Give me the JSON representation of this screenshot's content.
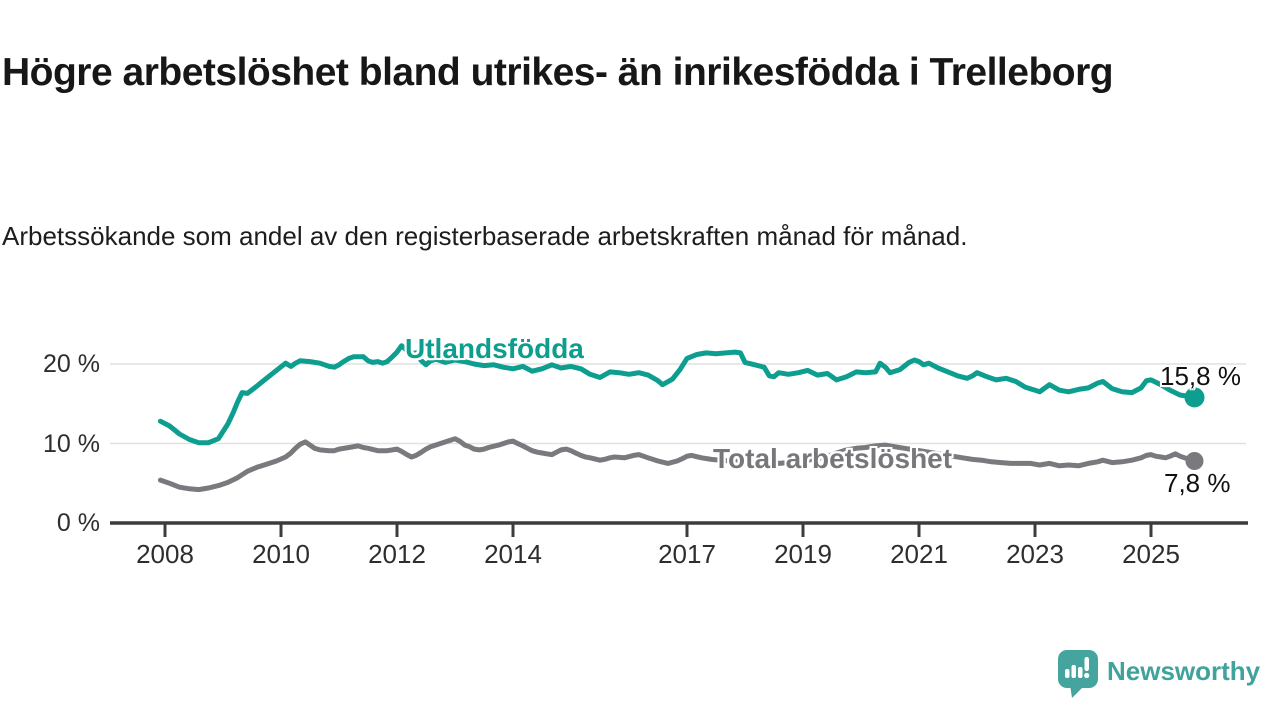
{
  "chart_data": {
    "type": "line",
    "title": "Högre arbetslöshet bland utrikes- än inrikesfödda i Trelleborg",
    "subtitle": "Arbetssökande som andel av den registerbaserade arbetskraften månad för månad.",
    "unit": "%",
    "grid": "horizontal-only",
    "legend_position": "inline-labels",
    "x_axis": {
      "min": 2007.9,
      "max": 2026.3,
      "tick_years": [
        2008,
        2010,
        2012,
        2014,
        2017,
        2019,
        2021,
        2023,
        2025
      ],
      "tick_labels": [
        "2008",
        "2010",
        "2012",
        "2014",
        "2017",
        "2019",
        "2021",
        "2023",
        "2025"
      ]
    },
    "y_axis": {
      "min": 0,
      "max": 25,
      "gridlines": [
        10,
        20
      ],
      "tick_values": [
        20,
        10,
        0
      ],
      "tick_labels": [
        "20 %",
        "10 %",
        "0 %"
      ]
    },
    "series": [
      {
        "name": "Utlandsfödda",
        "color": "#0d9e8f",
        "end_label": "15,8 %",
        "end_value": 15.8,
        "points": [
          [
            2007.92,
            12.8
          ],
          [
            2008.08,
            12.2
          ],
          [
            2008.25,
            11.2
          ],
          [
            2008.42,
            10.5
          ],
          [
            2008.58,
            10.1
          ],
          [
            2008.75,
            10.1
          ],
          [
            2008.92,
            10.6
          ],
          [
            2009.08,
            12.4
          ],
          [
            2009.17,
            13.8
          ],
          [
            2009.25,
            15.2
          ],
          [
            2009.33,
            16.4
          ],
          [
            2009.42,
            16.3
          ],
          [
            2009.58,
            17.2
          ],
          [
            2009.75,
            18.2
          ],
          [
            2009.92,
            19.2
          ],
          [
            2010.08,
            20.1
          ],
          [
            2010.17,
            19.7
          ],
          [
            2010.25,
            20.1
          ],
          [
            2010.33,
            20.4
          ],
          [
            2010.5,
            20.3
          ],
          [
            2010.67,
            20.1
          ],
          [
            2010.83,
            19.7
          ],
          [
            2010.92,
            19.6
          ],
          [
            2011.0,
            19.9
          ],
          [
            2011.08,
            20.3
          ],
          [
            2011.17,
            20.7
          ],
          [
            2011.25,
            20.9
          ],
          [
            2011.42,
            20.9
          ],
          [
            2011.5,
            20.4
          ],
          [
            2011.58,
            20.2
          ],
          [
            2011.67,
            20.3
          ],
          [
            2011.75,
            20.1
          ],
          [
            2011.83,
            20.3
          ],
          [
            2011.92,
            20.9
          ],
          [
            2012.0,
            21.5
          ],
          [
            2012.08,
            22.3
          ],
          [
            2012.17,
            21.7
          ],
          [
            2012.25,
            21.3
          ],
          [
            2012.33,
            21.4
          ],
          [
            2012.42,
            20.4
          ],
          [
            2012.5,
            19.9
          ],
          [
            2012.58,
            20.4
          ],
          [
            2012.67,
            20.6
          ],
          [
            2012.83,
            20.2
          ],
          [
            2013.0,
            20.5
          ],
          [
            2013.17,
            20.3
          ],
          [
            2013.33,
            20.0
          ],
          [
            2013.5,
            19.8
          ],
          [
            2013.67,
            19.9
          ],
          [
            2013.83,
            19.6
          ],
          [
            2014.0,
            19.4
          ],
          [
            2014.17,
            19.7
          ],
          [
            2014.33,
            19.1
          ],
          [
            2014.5,
            19.4
          ],
          [
            2014.67,
            19.9
          ],
          [
            2014.83,
            19.5
          ],
          [
            2015.0,
            19.7
          ],
          [
            2015.17,
            19.4
          ],
          [
            2015.33,
            18.7
          ],
          [
            2015.5,
            18.3
          ],
          [
            2015.67,
            19.0
          ],
          [
            2015.83,
            18.9
          ],
          [
            2016.0,
            18.7
          ],
          [
            2016.17,
            18.9
          ],
          [
            2016.33,
            18.6
          ],
          [
            2016.5,
            17.9
          ],
          [
            2016.58,
            17.4
          ],
          [
            2016.75,
            18.1
          ],
          [
            2016.88,
            19.3
          ],
          [
            2017.0,
            20.7
          ],
          [
            2017.17,
            21.2
          ],
          [
            2017.33,
            21.4
          ],
          [
            2017.5,
            21.3
          ],
          [
            2017.67,
            21.4
          ],
          [
            2017.83,
            21.5
          ],
          [
            2017.92,
            21.4
          ],
          [
            2018.0,
            20.2
          ],
          [
            2018.17,
            19.9
          ],
          [
            2018.33,
            19.6
          ],
          [
            2018.42,
            18.5
          ],
          [
            2018.5,
            18.4
          ],
          [
            2018.58,
            18.9
          ],
          [
            2018.75,
            18.7
          ],
          [
            2018.92,
            18.9
          ],
          [
            2019.08,
            19.2
          ],
          [
            2019.25,
            18.6
          ],
          [
            2019.42,
            18.8
          ],
          [
            2019.58,
            18.0
          ],
          [
            2019.75,
            18.4
          ],
          [
            2019.92,
            19.0
          ],
          [
            2020.08,
            18.9
          ],
          [
            2020.25,
            19.0
          ],
          [
            2020.33,
            20.1
          ],
          [
            2020.42,
            19.6
          ],
          [
            2020.5,
            18.9
          ],
          [
            2020.67,
            19.3
          ],
          [
            2020.83,
            20.2
          ],
          [
            2020.92,
            20.5
          ],
          [
            2021.0,
            20.3
          ],
          [
            2021.08,
            19.9
          ],
          [
            2021.17,
            20.1
          ],
          [
            2021.33,
            19.5
          ],
          [
            2021.5,
            19.0
          ],
          [
            2021.67,
            18.5
          ],
          [
            2021.83,
            18.2
          ],
          [
            2021.92,
            18.5
          ],
          [
            2022.0,
            18.9
          ],
          [
            2022.17,
            18.4
          ],
          [
            2022.33,
            18.0
          ],
          [
            2022.5,
            18.2
          ],
          [
            2022.67,
            17.8
          ],
          [
            2022.83,
            17.1
          ],
          [
            2023.0,
            16.7
          ],
          [
            2023.08,
            16.5
          ],
          [
            2023.25,
            17.4
          ],
          [
            2023.42,
            16.7
          ],
          [
            2023.58,
            16.5
          ],
          [
            2023.75,
            16.8
          ],
          [
            2023.92,
            17.0
          ],
          [
            2024.08,
            17.6
          ],
          [
            2024.17,
            17.8
          ],
          [
            2024.33,
            16.9
          ],
          [
            2024.5,
            16.5
          ],
          [
            2024.67,
            16.4
          ],
          [
            2024.83,
            17.0
          ],
          [
            2024.92,
            17.9
          ],
          [
            2025.0,
            18.0
          ],
          [
            2025.17,
            17.4
          ],
          [
            2025.33,
            16.7
          ],
          [
            2025.5,
            16.1
          ],
          [
            2025.67,
            15.9
          ],
          [
            2025.75,
            15.8
          ]
        ]
      },
      {
        "name": "Total arbetslöshet",
        "color": "#7a797d",
        "end_label": "7,8 %",
        "end_value": 7.8,
        "points": [
          [
            2007.92,
            5.4
          ],
          [
            2008.08,
            5.0
          ],
          [
            2008.25,
            4.5
          ],
          [
            2008.42,
            4.3
          ],
          [
            2008.58,
            4.2
          ],
          [
            2008.75,
            4.4
          ],
          [
            2008.92,
            4.7
          ],
          [
            2009.08,
            5.1
          ],
          [
            2009.25,
            5.7
          ],
          [
            2009.42,
            6.5
          ],
          [
            2009.58,
            7.0
          ],
          [
            2009.75,
            7.4
          ],
          [
            2009.92,
            7.8
          ],
          [
            2010.08,
            8.3
          ],
          [
            2010.17,
            8.8
          ],
          [
            2010.25,
            9.4
          ],
          [
            2010.33,
            9.9
          ],
          [
            2010.42,
            10.2
          ],
          [
            2010.5,
            9.8
          ],
          [
            2010.58,
            9.4
          ],
          [
            2010.67,
            9.2
          ],
          [
            2010.83,
            9.1
          ],
          [
            2010.92,
            9.1
          ],
          [
            2011.0,
            9.3
          ],
          [
            2011.17,
            9.5
          ],
          [
            2011.33,
            9.7
          ],
          [
            2011.42,
            9.5
          ],
          [
            2011.5,
            9.4
          ],
          [
            2011.67,
            9.1
          ],
          [
            2011.83,
            9.1
          ],
          [
            2011.92,
            9.2
          ],
          [
            2012.0,
            9.3
          ],
          [
            2012.08,
            9.0
          ],
          [
            2012.17,
            8.6
          ],
          [
            2012.25,
            8.3
          ],
          [
            2012.33,
            8.5
          ],
          [
            2012.42,
            8.9
          ],
          [
            2012.5,
            9.3
          ],
          [
            2012.58,
            9.6
          ],
          [
            2012.75,
            10.0
          ],
          [
            2012.92,
            10.4
          ],
          [
            2013.0,
            10.6
          ],
          [
            2013.08,
            10.3
          ],
          [
            2013.17,
            9.8
          ],
          [
            2013.25,
            9.6
          ],
          [
            2013.33,
            9.3
          ],
          [
            2013.42,
            9.2
          ],
          [
            2013.5,
            9.3
          ],
          [
            2013.58,
            9.5
          ],
          [
            2013.75,
            9.8
          ],
          [
            2013.92,
            10.2
          ],
          [
            2014.0,
            10.3
          ],
          [
            2014.08,
            10.0
          ],
          [
            2014.17,
            9.7
          ],
          [
            2014.25,
            9.4
          ],
          [
            2014.33,
            9.1
          ],
          [
            2014.42,
            8.9
          ],
          [
            2014.5,
            8.8
          ],
          [
            2014.58,
            8.7
          ],
          [
            2014.67,
            8.6
          ],
          [
            2014.75,
            8.9
          ],
          [
            2014.83,
            9.2
          ],
          [
            2014.92,
            9.3
          ],
          [
            2015.0,
            9.1
          ],
          [
            2015.08,
            8.8
          ],
          [
            2015.17,
            8.5
          ],
          [
            2015.25,
            8.3
          ],
          [
            2015.33,
            8.2
          ],
          [
            2015.5,
            7.9
          ],
          [
            2015.58,
            8.0
          ],
          [
            2015.67,
            8.2
          ],
          [
            2015.75,
            8.3
          ],
          [
            2015.92,
            8.2
          ],
          [
            2016.08,
            8.5
          ],
          [
            2016.17,
            8.6
          ],
          [
            2016.25,
            8.4
          ],
          [
            2016.33,
            8.2
          ],
          [
            2016.5,
            7.8
          ],
          [
            2016.67,
            7.5
          ],
          [
            2016.83,
            7.8
          ],
          [
            2016.92,
            8.1
          ],
          [
            2017.0,
            8.4
          ],
          [
            2017.08,
            8.5
          ],
          [
            2017.25,
            8.2
          ],
          [
            2017.42,
            8.0
          ],
          [
            2017.58,
            7.9
          ],
          [
            2017.75,
            7.8
          ],
          [
            2017.92,
            7.9
          ],
          [
            2018.08,
            7.7
          ],
          [
            2018.25,
            7.5
          ],
          [
            2018.42,
            7.4
          ],
          [
            2018.58,
            7.5
          ],
          [
            2018.75,
            7.6
          ],
          [
            2018.92,
            7.7
          ],
          [
            2019.08,
            7.9
          ],
          [
            2019.25,
            8.1
          ],
          [
            2019.42,
            8.4
          ],
          [
            2019.58,
            8.8
          ],
          [
            2019.75,
            9.2
          ],
          [
            2019.92,
            9.4
          ],
          [
            2020.08,
            9.5
          ],
          [
            2020.25,
            9.7
          ],
          [
            2020.42,
            9.8
          ],
          [
            2020.58,
            9.6
          ],
          [
            2020.75,
            9.4
          ],
          [
            2020.92,
            9.2
          ],
          [
            2021.08,
            9.0
          ],
          [
            2021.25,
            8.8
          ],
          [
            2021.42,
            8.6
          ],
          [
            2021.58,
            8.4
          ],
          [
            2021.75,
            8.2
          ],
          [
            2021.92,
            8.0
          ],
          [
            2022.08,
            7.9
          ],
          [
            2022.25,
            7.7
          ],
          [
            2022.42,
            7.6
          ],
          [
            2022.58,
            7.5
          ],
          [
            2022.75,
            7.5
          ],
          [
            2022.92,
            7.5
          ],
          [
            2023.0,
            7.4
          ],
          [
            2023.08,
            7.3
          ],
          [
            2023.25,
            7.5
          ],
          [
            2023.42,
            7.2
          ],
          [
            2023.58,
            7.3
          ],
          [
            2023.75,
            7.2
          ],
          [
            2023.92,
            7.5
          ],
          [
            2024.08,
            7.7
          ],
          [
            2024.17,
            7.9
          ],
          [
            2024.33,
            7.6
          ],
          [
            2024.5,
            7.7
          ],
          [
            2024.67,
            7.9
          ],
          [
            2024.83,
            8.2
          ],
          [
            2024.92,
            8.5
          ],
          [
            2025.0,
            8.6
          ],
          [
            2025.08,
            8.4
          ],
          [
            2025.17,
            8.3
          ],
          [
            2025.25,
            8.2
          ],
          [
            2025.33,
            8.4
          ],
          [
            2025.42,
            8.7
          ],
          [
            2025.5,
            8.4
          ],
          [
            2025.58,
            8.2
          ],
          [
            2025.67,
            8.0
          ],
          [
            2025.75,
            7.8
          ]
        ]
      }
    ]
  },
  "footer": {
    "brand": "Newsworthy"
  },
  "colors": {
    "series_utlandsfodda": "#0d9e8f",
    "series_total": "#7a797d",
    "axis": "#3c3c3c",
    "gridline": "#e1e1e1",
    "brand_teal": "#3fa39c",
    "logo_teal": "#45a49d",
    "background": "#ffffff"
  }
}
